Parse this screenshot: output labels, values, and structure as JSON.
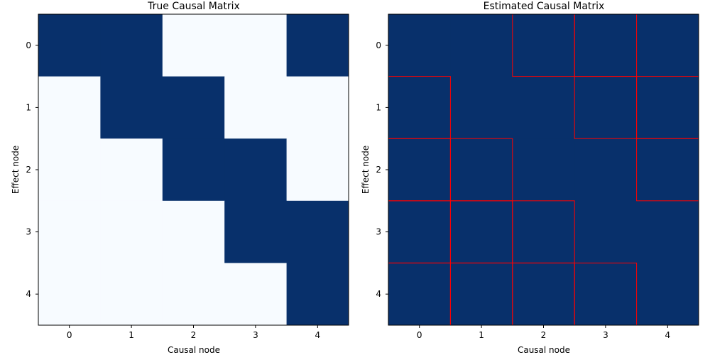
{
  "chart_data": [
    {
      "type": "heatmap",
      "title": "True Causal Matrix",
      "xlabel": "Causal node",
      "ylabel": "Effect node",
      "x_ticks": [
        "0",
        "1",
        "2",
        "3",
        "4"
      ],
      "y_ticks": [
        "0",
        "1",
        "2",
        "3",
        "4"
      ],
      "colormap": "Blues",
      "matrix": [
        [
          1,
          1,
          0,
          0,
          1
        ],
        [
          0,
          1,
          1,
          0,
          0
        ],
        [
          0,
          0,
          1,
          1,
          0
        ],
        [
          0,
          0,
          0,
          1,
          1
        ],
        [
          0,
          0,
          0,
          0,
          1
        ]
      ],
      "highlighted_cells": []
    },
    {
      "type": "heatmap",
      "title": "Estimated Causal Matrix",
      "xlabel": "Causal node",
      "ylabel": "Effect node",
      "x_ticks": [
        "0",
        "1",
        "2",
        "3",
        "4"
      ],
      "y_ticks": [
        "0",
        "1",
        "2",
        "3",
        "4"
      ],
      "colormap": "Blues",
      "matrix": [
        [
          1,
          1,
          1,
          1,
          1
        ],
        [
          1,
          1,
          1,
          1,
          1
        ],
        [
          1,
          1,
          1,
          1,
          1
        ],
        [
          1,
          1,
          1,
          1,
          1
        ],
        [
          1,
          1,
          1,
          1,
          1
        ]
      ],
      "highlighted_cells": [
        [
          0,
          2
        ],
        [
          0,
          3
        ],
        [
          1,
          0
        ],
        [
          1,
          3
        ],
        [
          1,
          4
        ],
        [
          2,
          0
        ],
        [
          2,
          1
        ],
        [
          2,
          4
        ],
        [
          3,
          0
        ],
        [
          3,
          1
        ],
        [
          3,
          2
        ],
        [
          4,
          0
        ],
        [
          4,
          1
        ],
        [
          4,
          2
        ],
        [
          4,
          3
        ]
      ]
    }
  ],
  "colors": {
    "high": "#08306b",
    "low": "#f7fbff",
    "highlight": "#ff0000"
  }
}
